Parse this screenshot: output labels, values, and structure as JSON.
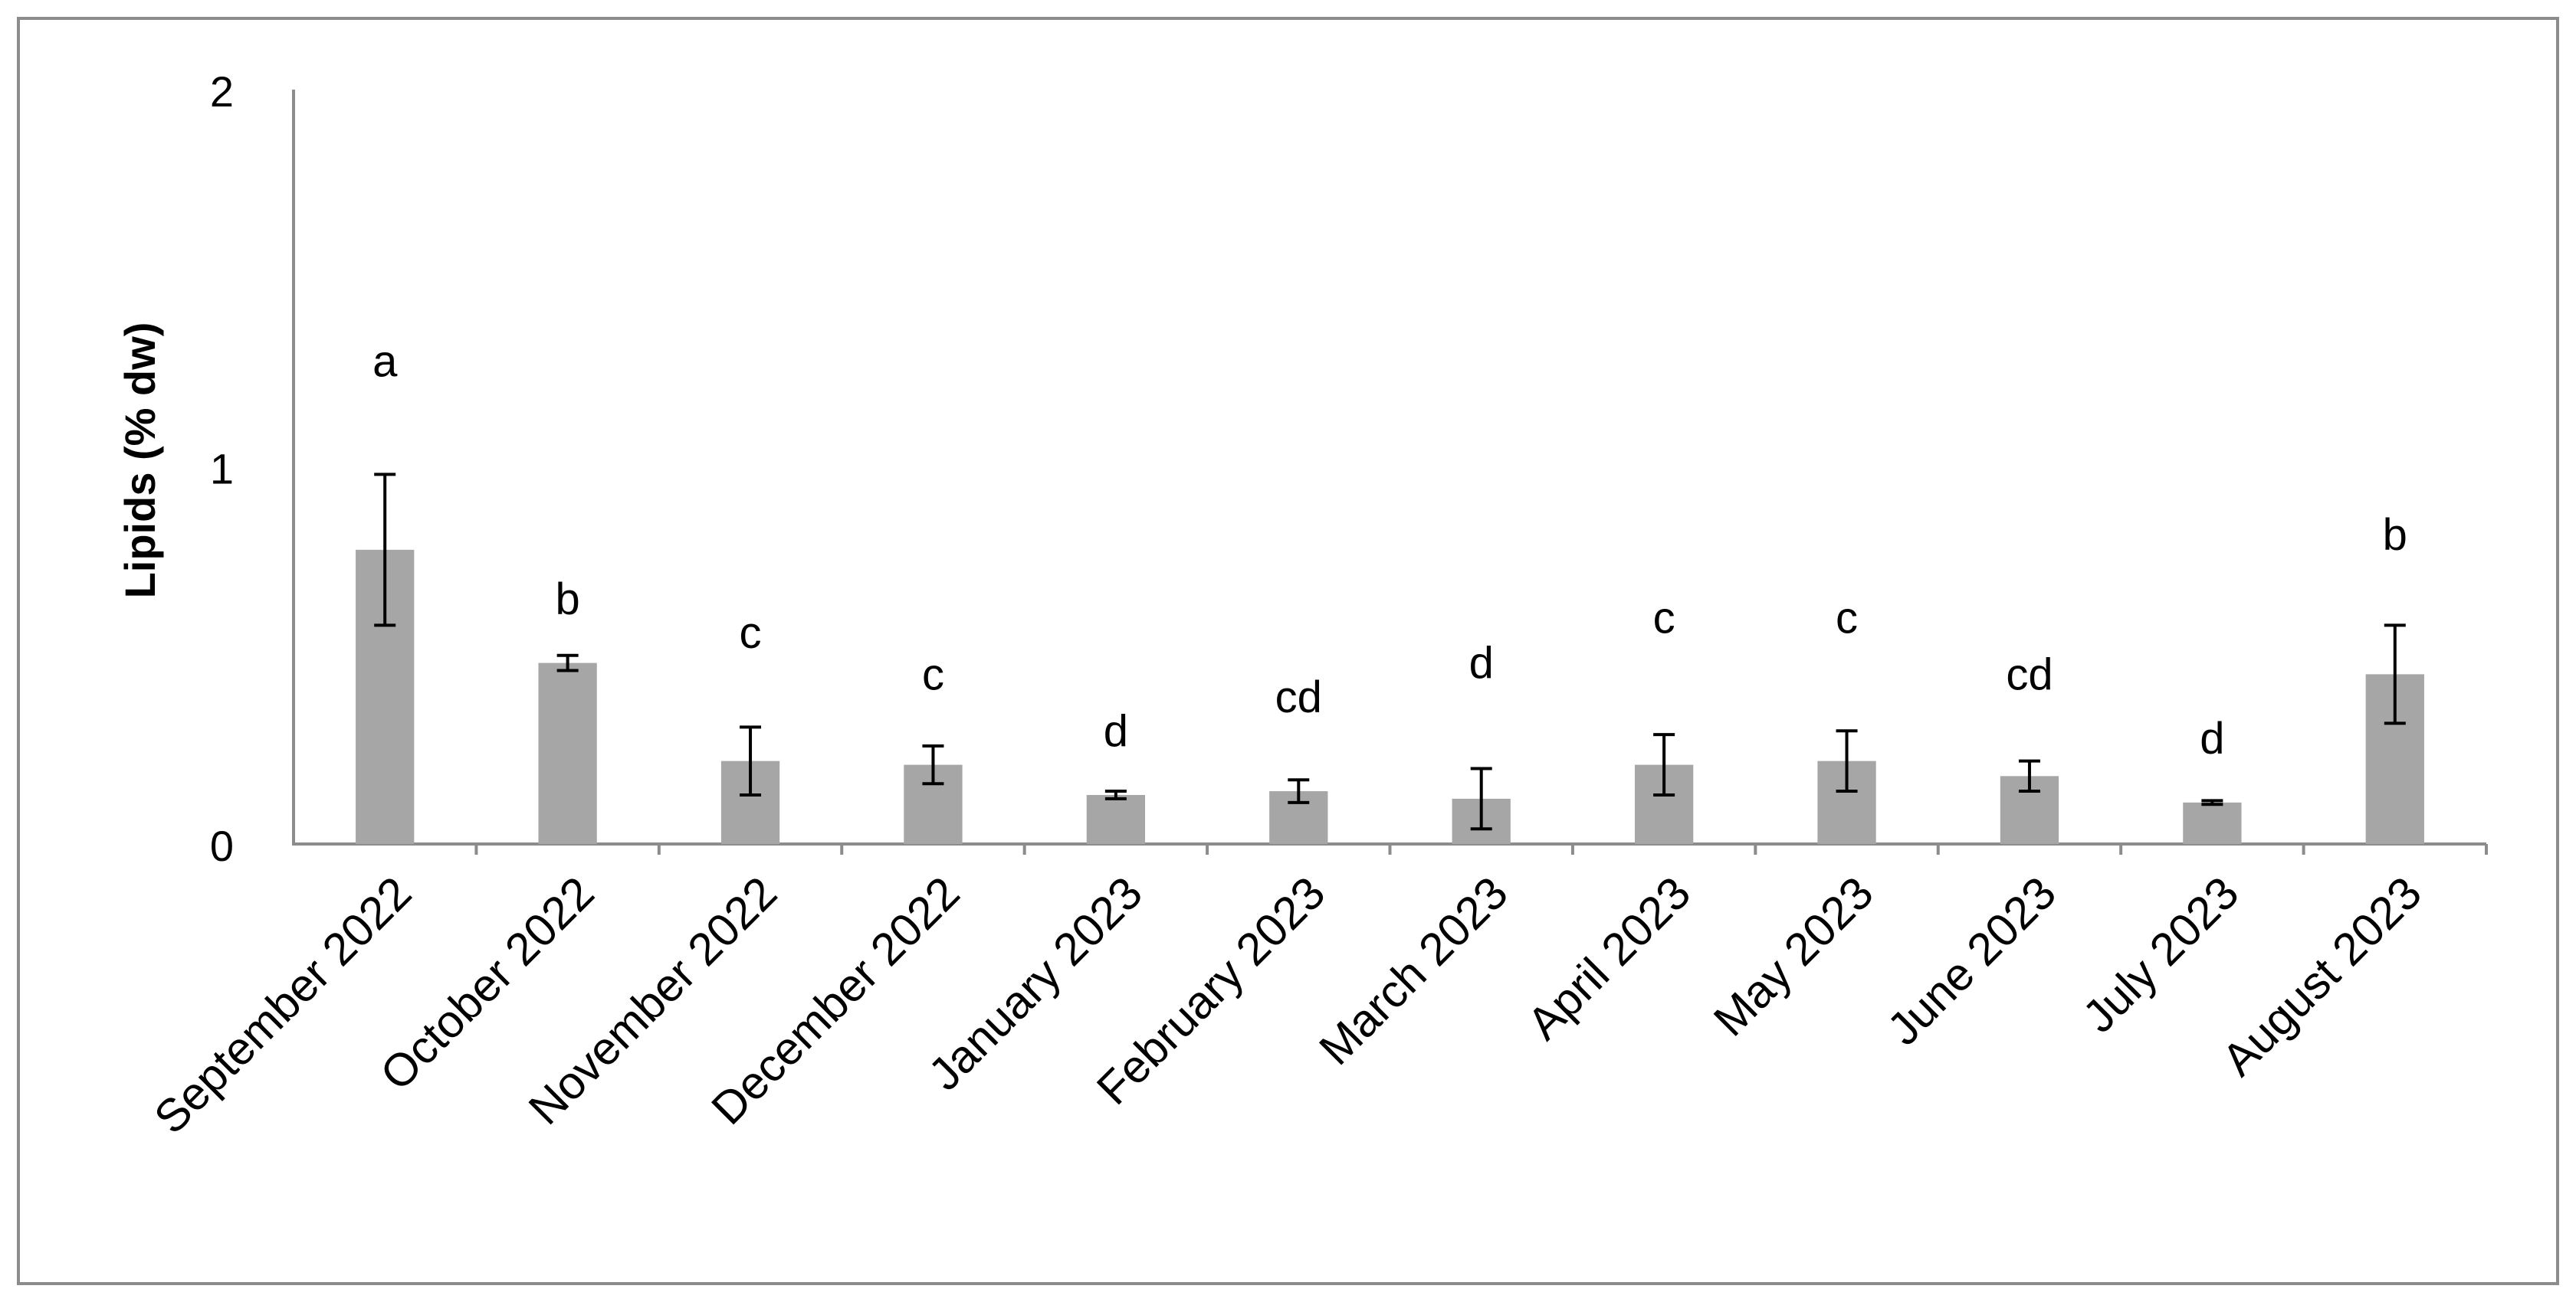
{
  "chart_data": {
    "type": "bar",
    "title": "",
    "xlabel": "",
    "ylabel": "Lipids (% dw)",
    "ylim": [
      0,
      2
    ],
    "yticks": [
      "0",
      "1",
      "2"
    ],
    "grid": false,
    "legend": "none",
    "bar_color": "#a6a6a6",
    "axis_color": "#8c8c8c",
    "categories": [
      "September 2022",
      "October 2022",
      "November 2022",
      "December 2022",
      "January 2023",
      "February 2023",
      "March 2023",
      "April 2023",
      "May 2023",
      "June 2023",
      "July 2023",
      "August 2023"
    ],
    "values": [
      0.78,
      0.48,
      0.22,
      0.21,
      0.13,
      0.14,
      0.12,
      0.21,
      0.22,
      0.18,
      0.11,
      0.45
    ],
    "errors": [
      0.2,
      0.02,
      0.09,
      0.05,
      0.01,
      0.03,
      0.08,
      0.08,
      0.08,
      0.04,
      0.005,
      0.13
    ],
    "significance_letters": [
      "a",
      "b",
      "c",
      "c",
      "d",
      "cd",
      "d",
      "c",
      "c",
      "cd",
      "d",
      "b"
    ],
    "significance_positions": [
      1.28,
      0.65,
      0.56,
      0.45,
      0.3,
      0.39,
      0.48,
      0.6,
      0.6,
      0.45,
      0.28,
      0.82
    ]
  }
}
